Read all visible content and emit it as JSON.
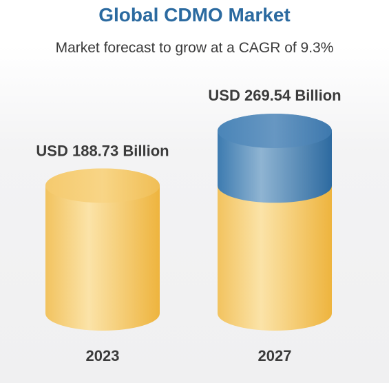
{
  "title": "Global CDMO Market",
  "subtitle": "Market forecast to grow at a CAGR of 9.3%",
  "colors": {
    "title": "#2b6aa0",
    "base_cylinder": "#f3c566",
    "growth_cylinder": "#5a8fbc"
  },
  "chart_data": {
    "type": "bar",
    "title": "Global CDMO Market",
    "subtitle": "Market forecast to grow at a CAGR of 9.3%",
    "categories": [
      "2023",
      "2027"
    ],
    "values": [
      188.73,
      269.54
    ],
    "value_labels": [
      "USD 188.73 Billion",
      "USD 269.54 Billion"
    ],
    "unit": "USD Billion",
    "style": "3d-cylinder",
    "growth_segment": {
      "category": "2027",
      "from": 188.73,
      "to": 269.54
    }
  }
}
